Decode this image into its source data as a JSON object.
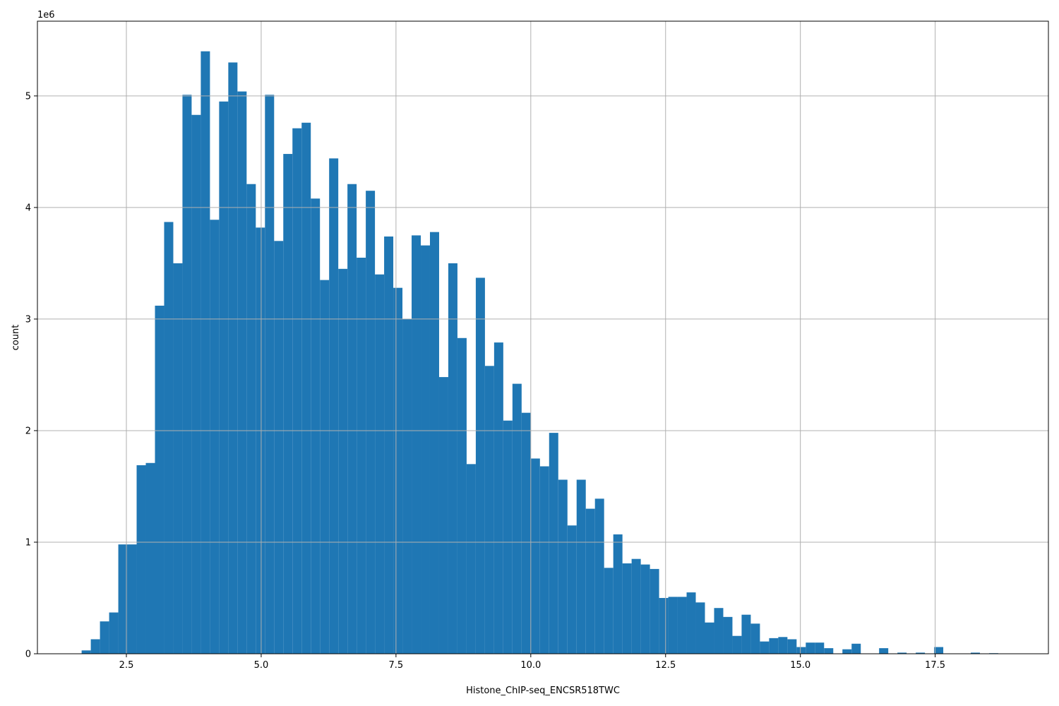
{
  "chart_data": {
    "type": "bar",
    "title": "",
    "xlabel": "Histone_ChIP-seq_ENCSR518TWC",
    "ylabel": "count",
    "y_multiplier_label": "1e6",
    "xlim": [
      0.85,
      19.6
    ],
    "ylim": [
      0,
      5.67
    ],
    "grid": true,
    "bar_color": "#1f77b4",
    "bin_width": 0.17,
    "x_ticks": [
      2.5,
      5.0,
      7.5,
      10.0,
      12.5,
      15.0,
      17.5
    ],
    "x_tick_labels": [
      "2.5",
      "5.0",
      "7.5",
      "10.0",
      "12.5",
      "15.0",
      "17.5"
    ],
    "y_ticks": [
      0,
      1,
      2,
      3,
      4,
      5
    ],
    "y_tick_labels": [
      "0",
      "1",
      "2",
      "3",
      "4",
      "5"
    ],
    "bin_starts": [
      1.67,
      1.84,
      2.01,
      2.18,
      2.35,
      2.52,
      2.69,
      2.86,
      3.03,
      3.2,
      3.37,
      3.54,
      3.71,
      3.88,
      4.05,
      4.22,
      4.39,
      4.56,
      4.73,
      4.9,
      5.07,
      5.24,
      5.41,
      5.58,
      5.75,
      5.92,
      6.09,
      6.26,
      6.43,
      6.6,
      6.77,
      6.94,
      7.11,
      7.28,
      7.45,
      7.62,
      7.79,
      7.96,
      8.13,
      8.3,
      8.47,
      8.64,
      8.81,
      8.98,
      9.15,
      9.32,
      9.49,
      9.66,
      9.83,
      10.0,
      10.17,
      10.34,
      10.51,
      10.68,
      10.85,
      11.02,
      11.19,
      11.36,
      11.53,
      11.7,
      11.87,
      12.04,
      12.21,
      12.38,
      12.55,
      12.72,
      12.89,
      13.06,
      13.23,
      13.4,
      13.57,
      13.74,
      13.91,
      14.08,
      14.25,
      14.42,
      14.59,
      14.76,
      14.93,
      15.1,
      15.27,
      15.44,
      15.61,
      15.78,
      15.95,
      16.12,
      16.29,
      16.46,
      16.63,
      16.8,
      16.97,
      17.14,
      17.31,
      17.48,
      17.65,
      17.82,
      17.99,
      18.16,
      18.33,
      18.5
    ],
    "values": [
      0.03,
      0.13,
      0.29,
      0.37,
      0.98,
      0.98,
      1.69,
      1.71,
      3.12,
      3.87,
      3.5,
      5.01,
      4.83,
      5.4,
      3.89,
      4.95,
      5.3,
      5.04,
      4.21,
      3.82,
      5.01,
      3.7,
      4.48,
      4.71,
      4.76,
      4.08,
      3.35,
      4.44,
      3.45,
      4.21,
      3.55,
      4.15,
      3.4,
      3.74,
      3.28,
      3.0,
      3.75,
      3.66,
      3.78,
      2.48,
      3.5,
      2.83,
      1.7,
      3.37,
      2.58,
      2.79,
      2.09,
      2.42,
      2.16,
      1.75,
      1.68,
      1.98,
      1.56,
      1.15,
      1.56,
      1.3,
      1.39,
      0.77,
      1.07,
      0.81,
      0.85,
      0.8,
      0.76,
      0.5,
      0.51,
      0.51,
      0.55,
      0.46,
      0.28,
      0.41,
      0.33,
      0.16,
      0.35,
      0.27,
      0.11,
      0.14,
      0.15,
      0.13,
      0.06,
      0.1,
      0.1,
      0.05,
      0.0,
      0.04,
      0.09,
      0.0,
      0.0,
      0.05,
      0.0,
      0.01,
      0.0,
      0.01,
      0.0,
      0.06,
      0.0,
      0.0,
      0.0,
      0.01,
      0.0,
      0.005
    ]
  }
}
